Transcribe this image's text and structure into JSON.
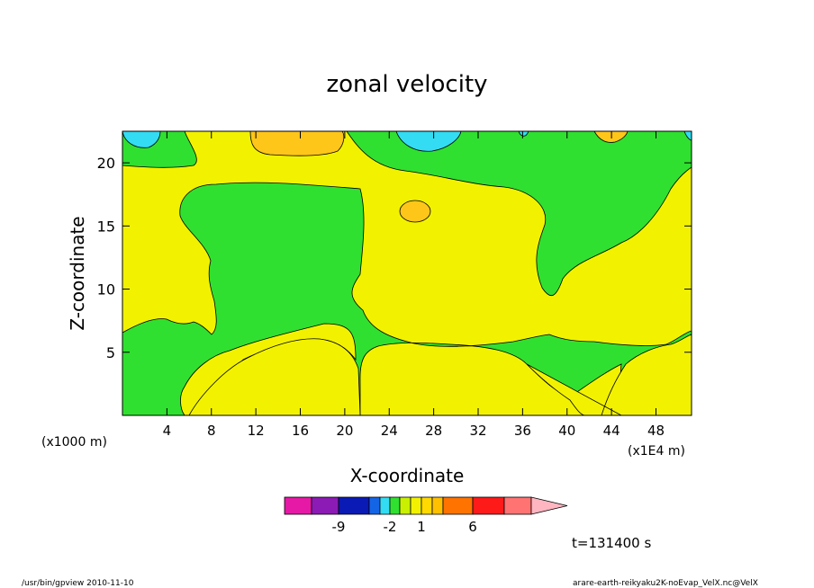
{
  "chart_data": {
    "type": "contour",
    "title": "zonal velocity",
    "xlabel": "X-coordinate",
    "ylabel": "Z-coordinate",
    "x_unit_left": "(x1000 m)",
    "x_unit_right": "(x1E4 m)",
    "x_ticks": [
      4,
      8,
      12,
      16,
      20,
      24,
      28,
      32,
      36,
      40,
      44,
      48
    ],
    "y_ticks": [
      5,
      10,
      15,
      20
    ],
    "xlim": [
      0,
      51.2
    ],
    "ylim": [
      0,
      22.5
    ],
    "colorbar": {
      "colors": [
        "#e619a6",
        "#8c1ab4",
        "#0a1ab4",
        "#1465e6",
        "#33dcf2",
        "#30e030",
        "#c8f000",
        "#f2f200",
        "#ffd900",
        "#ffc000",
        "#ff7300",
        "#ff1a1a",
        "#ff7373",
        "#ffb6c1"
      ],
      "labels": [
        {
          "text": "-9",
          "bin": 1
        },
        {
          "text": "-2",
          "bin": 4
        },
        {
          "text": "1",
          "bin": 7
        },
        {
          "text": "6",
          "bin": 10
        }
      ]
    },
    "time_label": "t=131400 s",
    "footer_left": "/usr/bin/gpview  2010-11-10",
    "footer_right": "arare-earth-reikyaku2K-noEvap_VelX.nc@VelX",
    "field_colors": {
      "green": "#30e030",
      "yellow": "#f2f200",
      "orange": "#ffc61a",
      "cyan": "#33dcf2"
    }
  }
}
